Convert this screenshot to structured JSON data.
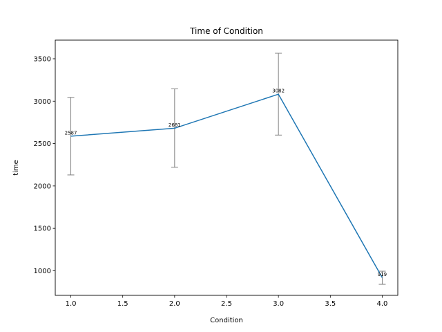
{
  "chart_data": {
    "type": "line",
    "title": "Time of Condition",
    "xlabel": "Condition",
    "ylabel": "time",
    "x": [
      1.0,
      2.0,
      3.0,
      4.0
    ],
    "series": [
      {
        "values": [
          2587,
          2681,
          3082,
          919
        ],
        "error_low": [
          2130,
          2220,
          2600,
          840
        ],
        "error_high": [
          3045,
          3145,
          3565,
          995
        ],
        "data_labels": [
          "2587",
          "2681",
          "3082",
          "919"
        ],
        "color": "#1f77b4"
      }
    ],
    "error_bar_color": "#808080",
    "xlim": [
      0.85,
      4.15
    ],
    "ylim": [
      710,
      3720
    ],
    "x_ticks": [
      1.0,
      1.5,
      2.0,
      2.5,
      3.0,
      3.5,
      4.0
    ],
    "x_tick_labels": [
      "1.0",
      "1.5",
      "2.0",
      "2.5",
      "3.0",
      "3.5",
      "4.0"
    ],
    "y_ticks": [
      1000,
      1500,
      2000,
      2500,
      3000,
      3500
    ],
    "y_tick_labels": [
      "1000",
      "1500",
      "2000",
      "2500",
      "3000",
      "3500"
    ],
    "grid": false
  }
}
